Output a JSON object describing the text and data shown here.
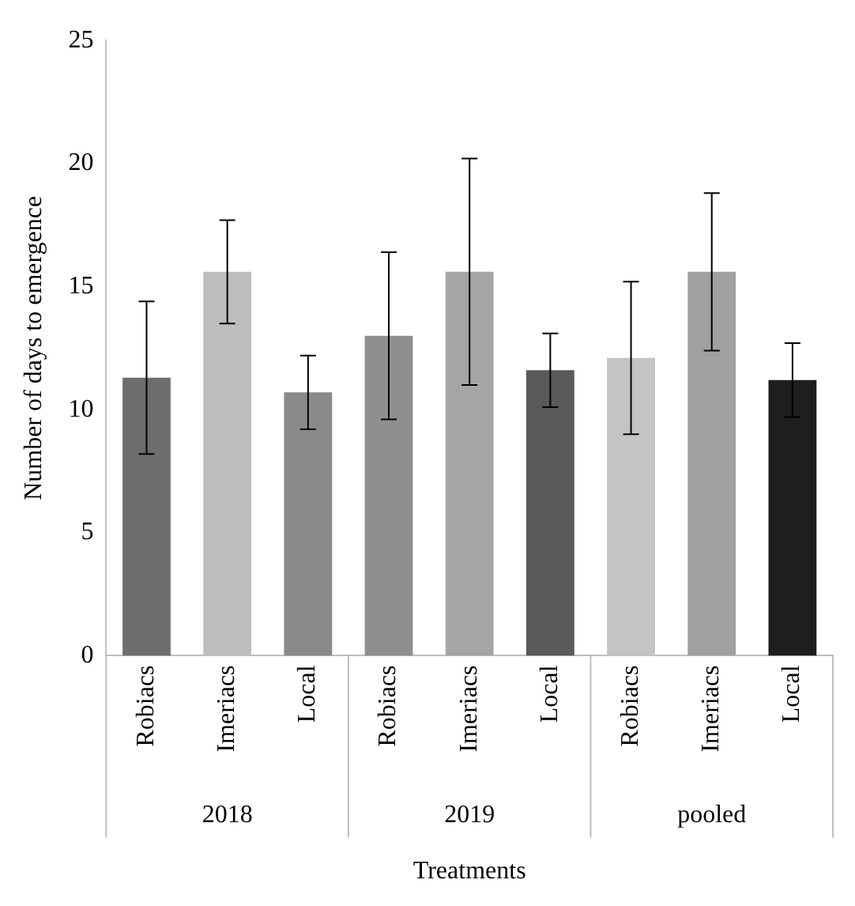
{
  "chart_data": {
    "type": "bar",
    "xlabel": "Treatments",
    "ylabel": "Number of days to emergence",
    "categories": [
      "Robiacs",
      "Imeriacs",
      "Local",
      "Robiacs",
      "Imeriacs",
      "Local",
      "Robiacs",
      "Imeriacs",
      "Local"
    ],
    "values": [
      11.3,
      15.6,
      10.7,
      13.0,
      15.6,
      11.6,
      12.1,
      15.6,
      11.2
    ],
    "errors": [
      3.1,
      2.1,
      1.5,
      3.4,
      4.6,
      1.5,
      3.1,
      3.2,
      1.5
    ],
    "colors": [
      "#6e6e6e",
      "#bdbdbd",
      "#8a8a8a",
      "#8f8f8f",
      "#a5a5a5",
      "#5a5a5a",
      "#c4c4c4",
      "#a0a0a0",
      "#1e1e1e"
    ],
    "annotations": [
      "2018",
      "2019",
      "pooled"
    ],
    "ylim": [
      0,
      25
    ],
    "yticks": [
      0,
      5,
      10,
      15,
      20,
      25
    ],
    "grid": false,
    "legend": false
  }
}
